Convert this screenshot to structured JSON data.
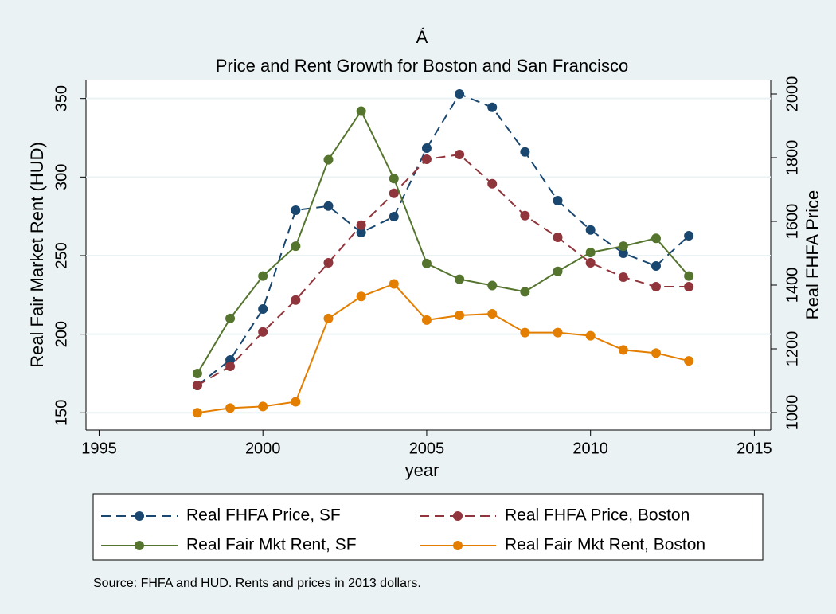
{
  "chart_data": {
    "type": "line",
    "title": "Á",
    "subtitle": "Price and Rent Growth for Boston and San Francisco",
    "x_label": "year",
    "y_label": "Real Fair Market Rent (HUD)",
    "y2_label": "Real FHFA Price",
    "note": "Source: FHFA and HUD. Rents and prices in 2013 dollars.",
    "x": [
      1998,
      1999,
      2000,
      2001,
      2002,
      2003,
      2004,
      2005,
      2006,
      2007,
      2008,
      2009,
      2010,
      2011,
      2012,
      2013
    ],
    "xlim": [
      1994.6,
      2015.5
    ],
    "xticks": [
      1995,
      2000,
      2005,
      2010,
      2015
    ],
    "ylim": [
      139,
      362
    ],
    "yticks": [
      150,
      200,
      250,
      300,
      350
    ],
    "y2lim": [
      945,
      2045
    ],
    "y2ticks": [
      1000,
      1200,
      1400,
      1600,
      1800,
      2000
    ],
    "grid": true,
    "series": [
      {
        "name": "Real FHFA Price, SF",
        "color": "#1a476f",
        "axis": "y2",
        "line_style": "dashed",
        "values": [
          1085,
          1165,
          1325,
          1635,
          1648,
          1565,
          1615,
          1830,
          2000,
          1958,
          1818,
          1665,
          1573,
          1500,
          1460,
          1555
        ]
      },
      {
        "name": "Real FHFA Price, Boston",
        "color": "#90353b",
        "axis": "y2",
        "line_style": "dashed",
        "values": [
          1085,
          1145,
          1253,
          1353,
          1470,
          1588,
          1688,
          1795,
          1810,
          1718,
          1618,
          1550,
          1470,
          1425,
          1395,
          1395
        ]
      },
      {
        "name": "Real Fair Mkt Rent, SF",
        "color": "#55752f",
        "axis": "y",
        "line_style": "solid",
        "values": [
          175,
          210,
          237,
          256,
          311,
          342,
          299,
          245,
          235,
          231,
          227,
          240,
          252,
          256,
          261,
          237
        ]
      },
      {
        "name": "Real Fair Mkt Rent, Boston",
        "color": "#e37e00",
        "axis": "y",
        "line_style": "solid",
        "values": [
          150,
          153,
          154,
          157,
          210,
          224,
          232,
          209,
          212,
          213,
          201,
          201,
          199,
          190,
          188,
          183
        ]
      }
    ]
  }
}
